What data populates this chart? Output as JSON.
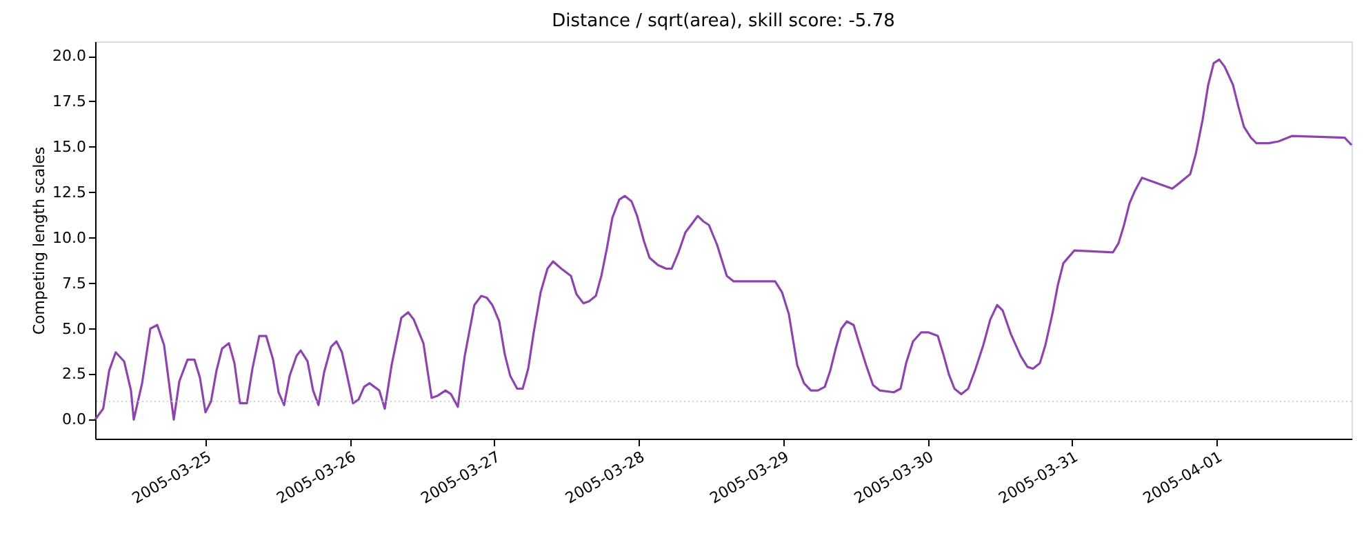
{
  "chart_data": {
    "type": "line",
    "title": "Distance / sqrt(area), skill score: -5.78",
    "ylabel": "Competing length scales",
    "x": [
      "2005-03-24T05:40",
      "2005-03-24T07:00",
      "2005-03-24T08:00",
      "2005-03-24T09:05",
      "2005-03-24T10:29",
      "2005-03-24T11:37",
      "2005-03-24T12:05",
      "2005-03-24T13:28",
      "2005-03-24T14:50",
      "2005-03-24T15:59",
      "2005-03-24T17:07",
      "2005-03-24T18:44",
      "2005-03-24T19:39",
      "2005-03-24T21:01",
      "2005-03-24T22:10",
      "2005-03-24T23:05",
      "2005-03-25T00:00",
      "2005-03-25T00:55",
      "2005-03-25T01:50",
      "2005-03-25T02:45",
      "2005-03-25T03:54",
      "2005-03-25T04:49",
      "2005-03-25T05:44",
      "2005-03-25T06:53",
      "2005-03-25T07:48",
      "2005-03-25T08:56",
      "2005-03-25T10:05",
      "2005-03-25T11:14",
      "2005-03-25T12:09",
      "2005-03-25T13:04",
      "2005-03-25T13:59",
      "2005-03-25T15:08",
      "2005-03-25T15:49",
      "2005-03-25T16:58",
      "2005-03-25T17:53",
      "2005-03-25T18:47",
      "2005-03-25T19:43",
      "2005-03-25T20:52",
      "2005-03-25T21:46",
      "2005-03-25T22:41",
      "2005-03-25T23:37",
      "2005-03-26T00:31",
      "2005-03-26T01:26",
      "2005-03-26T02:22",
      "2005-03-26T03:16",
      "2005-03-26T04:53",
      "2005-03-26T05:48",
      "2005-03-26T06:56",
      "2005-03-26T08:33",
      "2005-03-26T09:41",
      "2005-03-26T10:37",
      "2005-03-26T12:13",
      "2005-03-26T13:35",
      "2005-03-26T14:31",
      "2005-03-26T15:53",
      "2005-03-26T16:48",
      "2005-03-26T17:56",
      "2005-03-26T19:05",
      "2005-03-26T20:41",
      "2005-03-26T21:50",
      "2005-03-26T22:46",
      "2005-03-26T23:40",
      "2005-03-27T00:49",
      "2005-03-27T01:44",
      "2005-03-27T02:39",
      "2005-03-27T03:48",
      "2005-03-27T04:43",
      "2005-03-27T05:38",
      "2005-03-27T06:33",
      "2005-03-27T07:42",
      "2005-03-27T08:50",
      "2005-03-27T09:46",
      "2005-03-27T11:08",
      "2005-03-27T12:44",
      "2005-03-27T13:39",
      "2005-03-27T14:48",
      "2005-03-27T15:43",
      "2005-03-27T16:52",
      "2005-03-27T17:47",
      "2005-03-27T18:42",
      "2005-03-27T19:37",
      "2005-03-27T20:46",
      "2005-03-27T21:41",
      "2005-03-27T22:49",
      "2005-03-27T23:44",
      "2005-03-28T00:53",
      "2005-03-28T01:48",
      "2005-03-28T03:11",
      "2005-03-28T04:33",
      "2005-03-28T05:28",
      "2005-03-28T06:37",
      "2005-03-28T07:46",
      "2005-03-28T08:41",
      "2005-03-28T09:49",
      "2005-03-28T10:44",
      "2005-03-28T11:40",
      "2005-03-28T13:02",
      "2005-03-28T14:38",
      "2005-03-28T15:47",
      "2005-03-28T22:40",
      "2005-03-28T23:49",
      "2005-03-29T00:57",
      "2005-03-29T02:20",
      "2005-03-29T03:28",
      "2005-03-29T04:37",
      "2005-03-29T05:46",
      "2005-03-29T06:55",
      "2005-03-29T07:50",
      "2005-03-29T08:44",
      "2005-03-29T09:40",
      "2005-03-29T10:35",
      "2005-03-29T11:43",
      "2005-03-29T12:38",
      "2005-03-29T13:47",
      "2005-03-29T14:56",
      "2005-03-29T16:05",
      "2005-03-29T18:22",
      "2005-03-29T19:31",
      "2005-03-29T20:26",
      "2005-03-29T21:35",
      "2005-03-29T22:57",
      "2005-03-30T00:06",
      "2005-03-30T01:42",
      "2005-03-30T02:37",
      "2005-03-30T03:32",
      "2005-03-30T04:28",
      "2005-03-30T05:36",
      "2005-03-30T06:45",
      "2005-03-30T07:53",
      "2005-03-30T09:16",
      "2005-03-30T10:25",
      "2005-03-30T11:34",
      "2005-03-30T12:29",
      "2005-03-30T13:51",
      "2005-03-30T15:28",
      "2005-03-30T16:36",
      "2005-03-30T17:31",
      "2005-03-30T18:40",
      "2005-03-30T19:35",
      "2005-03-30T20:44",
      "2005-03-30T21:39",
      "2005-03-30T22:34",
      "2005-03-31T00:24",
      "2005-03-31T06:49",
      "2005-03-31T07:44",
      "2005-03-31T08:39",
      "2005-03-31T09:34",
      "2005-03-31T10:29",
      "2005-03-31T11:38",
      "2005-03-31T16:40",
      "2005-03-31T17:49",
      "2005-03-31T19:39",
      "2005-03-31T20:34",
      "2005-03-31T21:43",
      "2005-03-31T22:38",
      "2005-03-31T23:33",
      "2005-04-01T00:28",
      "2005-04-01T01:23",
      "2005-04-01T02:46",
      "2005-04-01T03:40",
      "2005-04-01T04:35",
      "2005-04-01T05:44",
      "2005-04-01T06:39",
      "2005-04-01T08:43",
      "2005-04-01T10:19",
      "2005-04-01T12:37",
      "2005-04-01T21:19",
      "2005-04-01T22:28"
    ],
    "series": [
      {
        "color": "#8e44ad",
        "values": [
          0.0,
          0.6,
          2.7,
          3.7,
          3.2,
          1.6,
          0.0,
          2.0,
          5.0,
          5.2,
          4.1,
          0.0,
          2.1,
          3.3,
          3.3,
          2.3,
          0.4,
          1.0,
          2.7,
          3.9,
          4.2,
          3.1,
          0.9,
          0.9,
          2.8,
          4.6,
          4.6,
          3.3,
          1.5,
          0.8,
          2.4,
          3.5,
          3.8,
          3.2,
          1.6,
          0.8,
          2.6,
          4.0,
          4.3,
          3.7,
          2.3,
          0.9,
          1.1,
          1.8,
          2.0,
          1.6,
          0.6,
          3.0,
          5.6,
          5.9,
          5.5,
          4.2,
          1.2,
          1.3,
          1.6,
          1.4,
          0.7,
          3.5,
          6.3,
          6.8,
          6.7,
          6.3,
          5.4,
          3.6,
          2.4,
          1.7,
          1.7,
          2.8,
          4.8,
          7.0,
          8.3,
          8.7,
          8.3,
          7.9,
          6.9,
          6.4,
          6.5,
          6.8,
          7.9,
          9.4,
          11.1,
          12.1,
          12.3,
          12.0,
          11.2,
          9.8,
          8.9,
          8.5,
          8.3,
          8.3,
          9.2,
          10.3,
          10.7,
          11.2,
          10.9,
          10.7,
          9.6,
          7.9,
          7.6,
          7.6,
          7.0,
          5.8,
          3.0,
          2.0,
          1.6,
          1.6,
          1.8,
          2.7,
          3.9,
          5.0,
          5.4,
          5.2,
          4.2,
          3.0,
          1.9,
          1.6,
          1.5,
          1.7,
          3.1,
          4.3,
          4.8,
          4.8,
          4.6,
          3.6,
          2.5,
          1.7,
          1.4,
          1.7,
          2.7,
          4.1,
          5.5,
          6.3,
          6.0,
          4.7,
          3.5,
          2.9,
          2.8,
          3.1,
          4.1,
          5.8,
          7.4,
          8.6,
          9.3,
          9.2,
          9.7,
          10.7,
          11.9,
          12.6,
          13.3,
          12.7,
          13.0,
          13.5,
          14.6,
          16.5,
          18.4,
          19.6,
          19.8,
          19.4,
          18.4,
          17.2,
          16.1,
          15.5,
          15.2,
          15.2,
          15.3,
          15.6,
          15.5,
          15.1
        ]
      }
    ],
    "xlim": [
      "2005-03-24T05:40",
      "2005-04-01T22:28"
    ],
    "xticks": [
      "2005-03-25",
      "2005-03-26",
      "2005-03-27",
      "2005-03-28",
      "2005-03-29",
      "2005-03-30",
      "2005-03-31",
      "2005-04-01"
    ],
    "ylim": [
      -1.05,
      20.8
    ],
    "yticks": [
      {
        "value": 0,
        "label": "0.0"
      },
      2.5,
      {
        "value": 5,
        "label": "5.0"
      },
      7.5,
      {
        "value": 10,
        "label": "10.0"
      },
      12.5,
      {
        "value": 15,
        "label": "15.0"
      },
      17.5,
      {
        "value": 20,
        "label": "20.0"
      }
    ],
    "ref_lines": [
      {
        "axis": "y",
        "value": 1,
        "color": "#c0c0c0",
        "line_style": "dotted"
      }
    ],
    "grid": false,
    "marker": "none",
    "line_style": "solid"
  }
}
